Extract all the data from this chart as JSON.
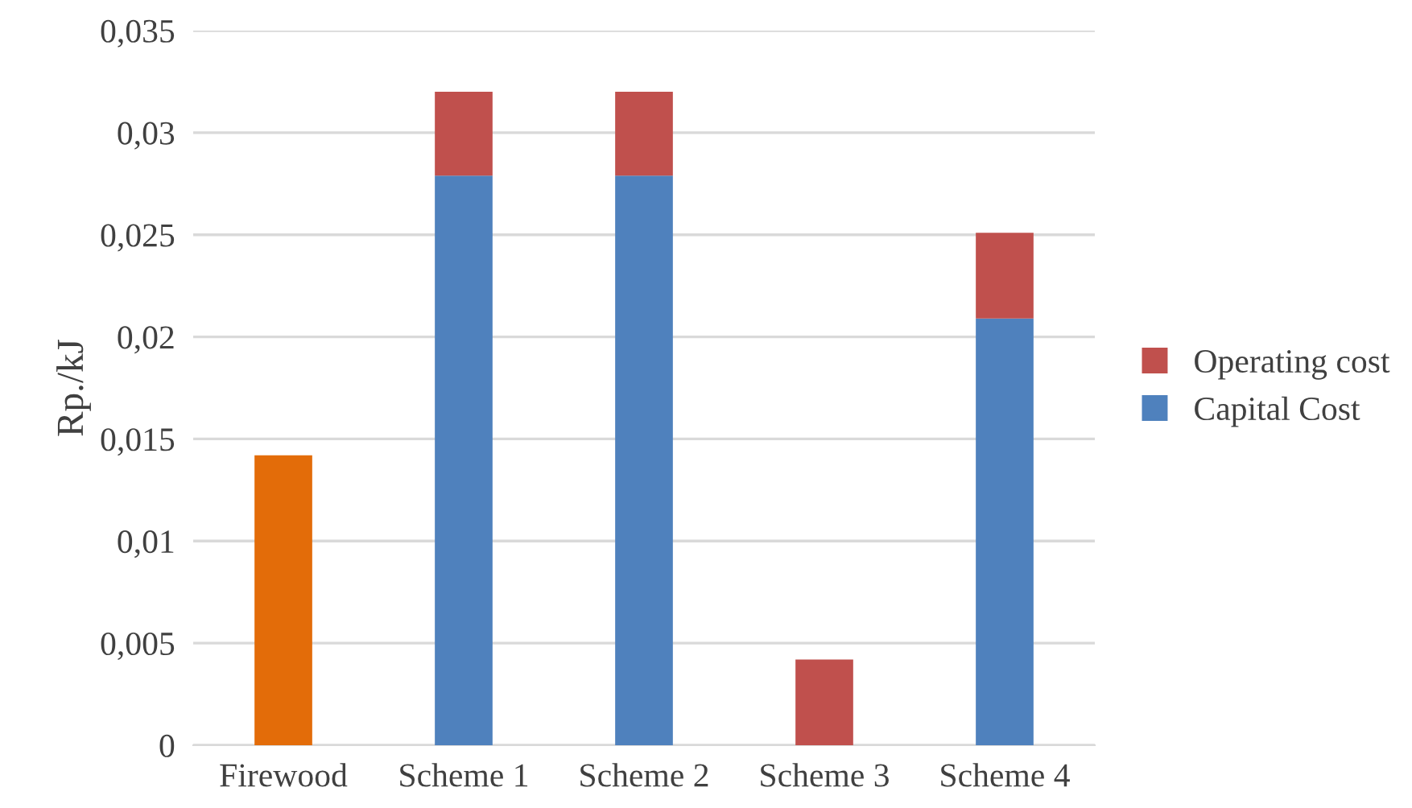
{
  "chart_data": {
    "type": "bar",
    "stacked": true,
    "ylabel": "Rp./kJ",
    "categories": [
      "Firewood",
      "Scheme 1",
      "Scheme 2",
      "Scheme 3",
      "Scheme 4"
    ],
    "series": [
      {
        "name": "Capital Cost",
        "color": "#4f81bd",
        "colors": [
          "#e36c09",
          "#4f81bd",
          "#4f81bd",
          "#4f81bd",
          "#4f81bd"
        ],
        "values": [
          0.0142,
          0.0279,
          0.0279,
          null,
          0.0209
        ]
      },
      {
        "name": "Operating cost",
        "color": "#c0504d",
        "values": [
          null,
          0.0041,
          0.0041,
          0.0042,
          0.0042
        ]
      }
    ],
    "ylim": [
      0,
      0.035
    ],
    "yticks": [
      0,
      {
        "value": 0.005,
        "label": "0,005"
      },
      {
        "value": 0.01,
        "label": "0,01"
      },
      {
        "value": 0.015,
        "label": "0,015"
      },
      {
        "value": 0.02,
        "label": "0,02"
      },
      {
        "value": 0.025,
        "label": "0,025"
      },
      {
        "value": 0.03,
        "label": "0,03"
      },
      {
        "value": 0.035,
        "label": "0,035"
      }
    ],
    "grid": "y",
    "legend": "right"
  }
}
